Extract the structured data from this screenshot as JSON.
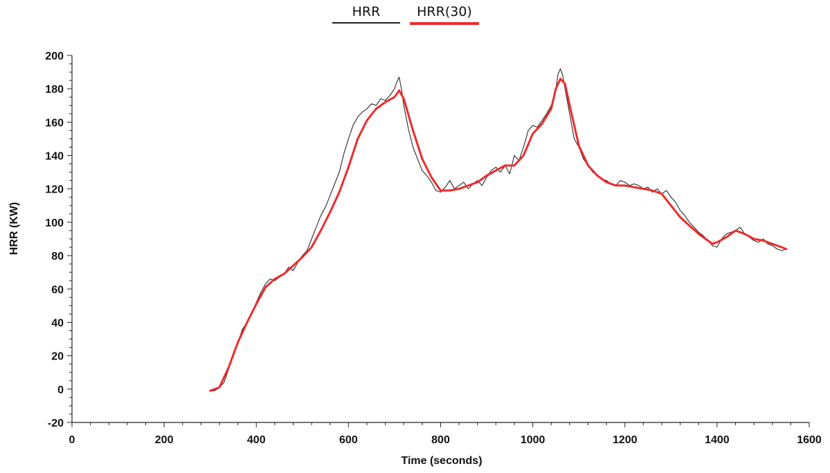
{
  "legend": {
    "series_1": "HRR",
    "series_2": "HRR(30)"
  },
  "colors": {
    "hrr_line": "#2a2a2a",
    "hrr30_line": "#ee2b2b",
    "axis": "#222222"
  },
  "chart_data": {
    "type": "line",
    "title": "",
    "xlabel": "Time (seconds)",
    "ylabel": "HRR (KW)",
    "xlim": [
      0,
      1600
    ],
    "ylim": [
      -20,
      200
    ],
    "xticks": [
      0,
      200,
      400,
      600,
      800,
      1000,
      1200,
      1400,
      1600
    ],
    "yticks": [
      -20,
      0,
      20,
      40,
      60,
      80,
      100,
      120,
      140,
      160,
      180,
      200
    ],
    "grid": false,
    "legend_position": "top-center",
    "series": [
      {
        "name": "HRR",
        "color": "#2a2a2a",
        "x": [
          300,
          310,
          320,
          330,
          340,
          350,
          360,
          370,
          380,
          390,
          400,
          410,
          420,
          430,
          440,
          450,
          460,
          470,
          480,
          490,
          500,
          510,
          520,
          530,
          540,
          550,
          560,
          570,
          580,
          590,
          600,
          610,
          620,
          630,
          640,
          650,
          660,
          670,
          680,
          690,
          700,
          705,
          710,
          715,
          720,
          730,
          740,
          750,
          760,
          770,
          780,
          790,
          800,
          810,
          820,
          830,
          840,
          850,
          860,
          870,
          880,
          890,
          900,
          910,
          920,
          930,
          940,
          950,
          960,
          970,
          980,
          990,
          1000,
          1010,
          1020,
          1030,
          1040,
          1050,
          1055,
          1060,
          1065,
          1070,
          1080,
          1090,
          1100,
          1110,
          1120,
          1130,
          1140,
          1150,
          1160,
          1170,
          1180,
          1190,
          1200,
          1210,
          1220,
          1230,
          1240,
          1250,
          1260,
          1270,
          1280,
          1290,
          1300,
          1310,
          1320,
          1330,
          1340,
          1350,
          1360,
          1370,
          1380,
          1390,
          1400,
          1410,
          1420,
          1430,
          1440,
          1450,
          1460,
          1470,
          1480,
          1490,
          1500,
          1510,
          1520,
          1530,
          1540,
          1550
        ],
        "values": [
          -1,
          -1,
          1,
          4,
          12,
          20,
          28,
          36,
          40,
          46,
          52,
          58,
          63,
          66,
          65,
          67,
          69,
          73,
          71,
          76,
          80,
          83,
          90,
          97,
          104,
          109,
          116,
          123,
          130,
          141,
          150,
          158,
          163,
          166,
          168,
          171,
          170,
          174,
          173,
          176,
          180,
          184,
          187,
          180,
          170,
          156,
          145,
          138,
          131,
          128,
          124,
          119,
          118,
          121,
          125,
          120,
          122,
          124,
          120,
          123,
          125,
          122,
          127,
          131,
          133,
          130,
          134,
          129,
          140,
          137,
          145,
          155,
          158,
          157,
          161,
          165,
          170,
          180,
          189,
          192,
          188,
          180,
          165,
          150,
          145,
          138,
          134,
          130,
          128,
          126,
          125,
          123,
          122,
          125,
          124,
          122,
          123,
          122,
          120,
          121,
          118,
          120,
          117,
          119,
          115,
          112,
          107,
          104,
          100,
          97,
          94,
          92,
          89,
          86,
          85,
          90,
          93,
          94,
          95,
          97,
          93,
          91,
          89,
          88,
          90,
          87,
          86,
          84,
          83,
          84
        ]
      },
      {
        "name": "HRR(30)",
        "color": "#ee2b2b",
        "x": [
          300,
          320,
          340,
          360,
          380,
          400,
          420,
          440,
          460,
          480,
          500,
          520,
          540,
          560,
          580,
          600,
          620,
          640,
          660,
          680,
          700,
          710,
          720,
          740,
          760,
          780,
          800,
          820,
          840,
          860,
          880,
          900,
          920,
          940,
          960,
          980,
          1000,
          1020,
          1040,
          1050,
          1060,
          1070,
          1080,
          1100,
          1120,
          1140,
          1160,
          1180,
          1200,
          1220,
          1240,
          1260,
          1280,
          1300,
          1320,
          1340,
          1360,
          1380,
          1390,
          1400,
          1420,
          1440,
          1460,
          1480,
          1500,
          1520,
          1540,
          1550
        ],
        "values": [
          -1,
          1,
          13,
          28,
          40,
          51,
          61,
          66,
          69,
          74,
          79,
          85,
          95,
          106,
          118,
          133,
          150,
          161,
          168,
          172,
          175,
          179,
          174,
          155,
          138,
          127,
          119,
          119,
          120,
          122,
          124,
          128,
          131,
          134,
          134,
          140,
          153,
          159,
          168,
          180,
          186,
          183,
          170,
          146,
          134,
          128,
          124,
          122,
          122,
          121,
          120,
          119,
          117,
          110,
          103,
          98,
          93,
          89,
          87,
          88,
          91,
          95,
          93,
          90,
          89,
          87,
          85,
          84
        ]
      }
    ]
  }
}
